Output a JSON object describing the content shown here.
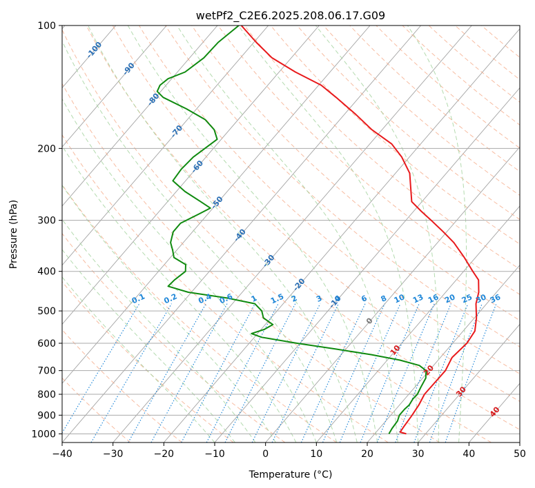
{
  "chart_data": {
    "type": "skew-t",
    "title": "wetPf2_C2E6.2025.208.06.17.G09",
    "xlabel": "Temperature (°C)",
    "ylabel": "Pressure (hPa)",
    "xlim": [
      -40,
      50
    ],
    "ylim": [
      1050,
      100
    ],
    "y_scale": "log",
    "grid": true,
    "x_ticks": [
      "−40",
      "−30",
      "−20",
      "−10",
      "0",
      "10",
      "20",
      "30",
      "40",
      "50"
    ],
    "y_ticks": [
      "100",
      "200",
      "300",
      "400",
      "500",
      "600",
      "700",
      "800",
      "900",
      "1000"
    ],
    "isotherm_labels": [
      "-100",
      "-90",
      "-80",
      "-70",
      "-60",
      "-50",
      "-40",
      "-30",
      "-20",
      "-10",
      "0",
      "10",
      "20",
      "30",
      "40"
    ],
    "mixing_ratio_labels": [
      "0.1",
      "0.2",
      "0.4",
      "0.6",
      "1",
      "1.5",
      "2",
      "3",
      "4",
      "6",
      "8",
      "10",
      "13",
      "16",
      "20",
      "25",
      "30",
      "36"
    ],
    "colors": {
      "temperature": "#e8191b",
      "dewpoint": "#0f8a0f",
      "dry_adiabat": "#f4a582",
      "moist_adiabat": "#a6d4a0",
      "mixing_ratio": "#1f87d8",
      "isotherm": "#9e9e9e",
      "isotherm_label": "#2a6fb5",
      "isotherm_label_warm": "#d7191c",
      "freezing_label": "#777777"
    },
    "series": [
      {
        "key": "temperature",
        "points": [
          {
            "p": 1000,
            "t": 26.2
          },
          {
            "p": 990,
            "t": 24.7
          },
          {
            "p": 960,
            "t": 24.5
          },
          {
            "p": 900,
            "t": 24.2
          },
          {
            "p": 850,
            "t": 23.8
          },
          {
            "p": 800,
            "t": 23.1
          },
          {
            "p": 700,
            "t": 23.2
          },
          {
            "p": 650,
            "t": 22.3
          },
          {
            "p": 600,
            "t": 22.8
          },
          {
            "p": 560,
            "t": 22.3
          },
          {
            "p": 520,
            "t": 20.4
          },
          {
            "p": 480,
            "t": 17.9
          },
          {
            "p": 450,
            "t": 16.5
          },
          {
            "p": 420,
            "t": 14.4
          },
          {
            "p": 400,
            "t": 11.8
          },
          {
            "p": 370,
            "t": 7.8
          },
          {
            "p": 340,
            "t": 3.2
          },
          {
            "p": 320,
            "t": -0.7
          },
          {
            "p": 300,
            "t": -5.0
          },
          {
            "p": 285,
            "t": -8.5
          },
          {
            "p": 270,
            "t": -12.0
          },
          {
            "p": 250,
            "t": -14.5
          },
          {
            "p": 230,
            "t": -17.2
          },
          {
            "p": 210,
            "t": -21.5
          },
          {
            "p": 195,
            "t": -25.7
          },
          {
            "p": 180,
            "t": -32.0
          },
          {
            "p": 165,
            "t": -37.8
          },
          {
            "p": 150,
            "t": -44.5
          },
          {
            "p": 140,
            "t": -49.5
          },
          {
            "p": 130,
            "t": -56.8
          },
          {
            "p": 120,
            "t": -63.8
          },
          {
            "p": 110,
            "t": -69.5
          },
          {
            "p": 100,
            "t": -75.3
          }
        ]
      },
      {
        "key": "dewpoint",
        "points": [
          {
            "p": 1000,
            "t": 22.8
          },
          {
            "p": 970,
            "t": 22.5
          },
          {
            "p": 930,
            "t": 22.3
          },
          {
            "p": 900,
            "t": 21.7
          },
          {
            "p": 870,
            "t": 21.7
          },
          {
            "p": 850,
            "t": 21.9
          },
          {
            "p": 820,
            "t": 21.6
          },
          {
            "p": 800,
            "t": 21.7
          },
          {
            "p": 770,
            "t": 21.2
          },
          {
            "p": 730,
            "t": 20.6
          },
          {
            "p": 700,
            "t": 19.4
          },
          {
            "p": 680,
            "t": 17.2
          },
          {
            "p": 660,
            "t": 12.5
          },
          {
            "p": 640,
            "t": 6.0
          },
          {
            "p": 620,
            "t": -2.0
          },
          {
            "p": 600,
            "t": -10.6
          },
          {
            "p": 580,
            "t": -18.6
          },
          {
            "p": 568,
            "t": -21.2
          },
          {
            "p": 555,
            "t": -19.4
          },
          {
            "p": 540,
            "t": -18.5
          },
          {
            "p": 530,
            "t": -20.0
          },
          {
            "p": 520,
            "t": -21.5
          },
          {
            "p": 500,
            "t": -23.0
          },
          {
            "p": 480,
            "t": -25.6
          },
          {
            "p": 465,
            "t": -32.0
          },
          {
            "p": 450,
            "t": -40.6
          },
          {
            "p": 435,
            "t": -45.6
          },
          {
            "p": 420,
            "t": -45.4
          },
          {
            "p": 400,
            "t": -44.7
          },
          {
            "p": 385,
            "t": -45.8
          },
          {
            "p": 370,
            "t": -49.3
          },
          {
            "p": 355,
            "t": -50.8
          },
          {
            "p": 340,
            "t": -52.5
          },
          {
            "p": 320,
            "t": -53.8
          },
          {
            "p": 305,
            "t": -53.8
          },
          {
            "p": 290,
            "t": -51.8
          },
          {
            "p": 280,
            "t": -50.5
          },
          {
            "p": 270,
            "t": -53.5
          },
          {
            "p": 255,
            "t": -58.3
          },
          {
            "p": 240,
            "t": -62.5
          },
          {
            "p": 225,
            "t": -62.8
          },
          {
            "p": 210,
            "t": -62.5
          },
          {
            "p": 190,
            "t": -60.8
          },
          {
            "p": 180,
            "t": -63.0
          },
          {
            "p": 170,
            "t": -66.5
          },
          {
            "p": 160,
            "t": -72.0
          },
          {
            "p": 150,
            "t": -78.5
          },
          {
            "p": 145,
            "t": -80.7
          },
          {
            "p": 140,
            "t": -81.2
          },
          {
            "p": 135,
            "t": -80.7
          },
          {
            "p": 130,
            "t": -78.5
          },
          {
            "p": 120,
            "t": -77.2
          },
          {
            "p": 110,
            "t": -77.0
          },
          {
            "p": 100,
            "t": -75.8
          }
        ]
      }
    ]
  }
}
